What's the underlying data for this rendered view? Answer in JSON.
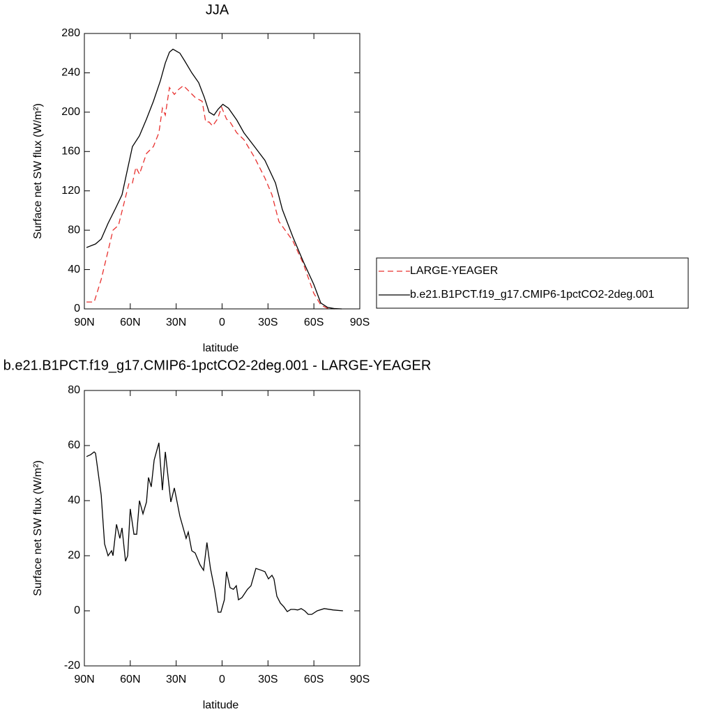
{
  "chart_data": [
    {
      "type": "line",
      "title": "JJA",
      "xlabel": "latitude",
      "ylabel": "Surface net SW flux (W/m²)",
      "xlim": [
        90,
        -90
      ],
      "xticks": [
        {
          "value": 90,
          "label": "90N"
        },
        {
          "value": 60,
          "label": "60N"
        },
        {
          "value": 30,
          "label": "30N"
        },
        0,
        {
          "value": -30,
          "label": "30S"
        },
        {
          "value": -60,
          "label": "60S"
        },
        {
          "value": -90,
          "label": "90S"
        }
      ],
      "ylim": [
        0,
        280
      ],
      "yticks": [
        0,
        40,
        80,
        120,
        160,
        200,
        240,
        280
      ],
      "legend": "right",
      "series": [
        {
          "name": "LARGE-YEAGER",
          "color": "#e8302e",
          "linestyle": "dashed",
          "x": [
            88.6,
            83.6,
            79,
            74.5,
            71.3,
            67.7,
            64,
            60.8,
            58.6,
            56.3,
            54,
            49.4,
            44.9,
            41.3,
            39,
            37.1,
            34.4,
            31.2,
            28.5,
            25.3,
            22.1,
            17.6,
            13,
            10.7,
            8.5,
            6.2,
            3,
            0.3,
            -2.9,
            -5.2,
            -9.6,
            -14.3,
            -21.2,
            -28,
            -32.6,
            -37.1,
            -46.3,
            -53.1,
            -59.9,
            -64.5,
            -69,
            -73.6
          ],
          "values": [
            7,
            7,
            30,
            59,
            80,
            85,
            108,
            128,
            128,
            144,
            137,
            158,
            165,
            179,
            204,
            197,
            225,
            218,
            223,
            227,
            222,
            215,
            211,
            190,
            190,
            186,
            193,
            205,
            193,
            190,
            179,
            172,
            154,
            133,
            116,
            89,
            69,
            46,
            16,
            4,
            0.5,
            0
          ]
        },
        {
          "name": "b.e21.B1PCT.f19_g17.CMIP6-1pctCO2-2deg.001",
          "color": "#000000",
          "linestyle": "solid",
          "x": [
            88.6,
            82.7,
            79,
            74.5,
            70,
            65.4,
            58.6,
            54,
            49.4,
            44.9,
            40.3,
            37.1,
            34.4,
            32.1,
            27.6,
            24.4,
            19.8,
            15.3,
            11.6,
            8.5,
            5.3,
            2.6,
            -0.5,
            -4.2,
            -9.6,
            -14.3,
            -21.2,
            -28,
            -34.9,
            -39.4,
            -46.3,
            -53.1,
            -59.9,
            -64.5,
            -69,
            -73.6,
            -78.2
          ],
          "values": [
            62.4,
            66,
            71,
            87,
            101,
            116,
            165,
            176,
            193,
            211,
            232,
            250,
            261,
            264,
            260,
            252,
            240,
            230,
            215,
            200,
            197,
            203,
            208,
            204,
            192,
            179,
            165,
            151,
            128,
            101,
            73,
            48,
            25,
            6,
            1.5,
            0.3,
            0
          ]
        }
      ]
    },
    {
      "type": "line",
      "title": "b.e21.B1PCT.f19_g17.CMIP6-1pctCO2-2deg.001 - LARGE-YEAGER",
      "xlabel": "latitude",
      "ylabel": "Surface net SW flux (W/m²)",
      "xlim": [
        90,
        -90
      ],
      "xticks": [
        {
          "value": 90,
          "label": "90N"
        },
        {
          "value": 60,
          "label": "60N"
        },
        {
          "value": 30,
          "label": "30N"
        },
        0,
        {
          "value": -30,
          "label": "30S"
        },
        {
          "value": -60,
          "label": "60S"
        },
        {
          "value": -90,
          "label": "90S"
        }
      ],
      "ylim": [
        -20,
        80
      ],
      "yticks": [
        -20,
        0,
        20,
        40,
        60,
        80
      ],
      "series": [
        {
          "color": "#000000",
          "linestyle": "solid",
          "x": [
            88.6,
            85.9,
            83.6,
            82.7,
            79,
            76.8,
            74.5,
            72.2,
            71.3,
            69,
            66.8,
            65.4,
            63.1,
            61.7,
            60,
            57.6,
            55.8,
            54,
            51.7,
            49.4,
            48.1,
            46.3,
            44.4,
            41.3,
            39,
            37.1,
            33.5,
            31.2,
            27.6,
            23.5,
            22.1,
            19.8,
            17.6,
            14.4,
            12.1,
            9.9,
            7.6,
            4.9,
            2.6,
            0.8,
            -1.5,
            -2.9,
            -5.2,
            -7.4,
            -9.3,
            -10.7,
            -13,
            -16.6,
            -18.9,
            -22.1,
            -25.7,
            -28,
            -30.3,
            -32.6,
            -33.9,
            -35.8,
            -38.1,
            -40.3,
            -42.6,
            -44.9,
            -47.2,
            -49.4,
            -51.7,
            -54,
            -56.3,
            -58.6,
            -62.2,
            -66.8,
            -72.7,
            -79
          ],
          "values": [
            56,
            56.7,
            57.7,
            57.2,
            42,
            24.3,
            20,
            21.8,
            20,
            31.4,
            26.3,
            30.1,
            18,
            20,
            37,
            27.8,
            27.8,
            40,
            35.2,
            39.5,
            48.4,
            45,
            54.7,
            61,
            43.8,
            57.7,
            39.5,
            44.6,
            34.4,
            26.3,
            28.6,
            21.8,
            21,
            16.7,
            14.7,
            24.8,
            15.4,
            7.8,
            -0.5,
            -0.5,
            4,
            14.2,
            8.4,
            7.8,
            9.1,
            4,
            4.8,
            7.8,
            9.1,
            15.4,
            14.7,
            14.2,
            11.6,
            12.9,
            11.6,
            5.3,
            2.8,
            1.5,
            -0.3,
            0.5,
            0.5,
            0.3,
            0.8,
            0,
            -1.3,
            -1.3,
            0,
            0.8,
            0.3,
            0
          ]
        }
      ]
    }
  ]
}
